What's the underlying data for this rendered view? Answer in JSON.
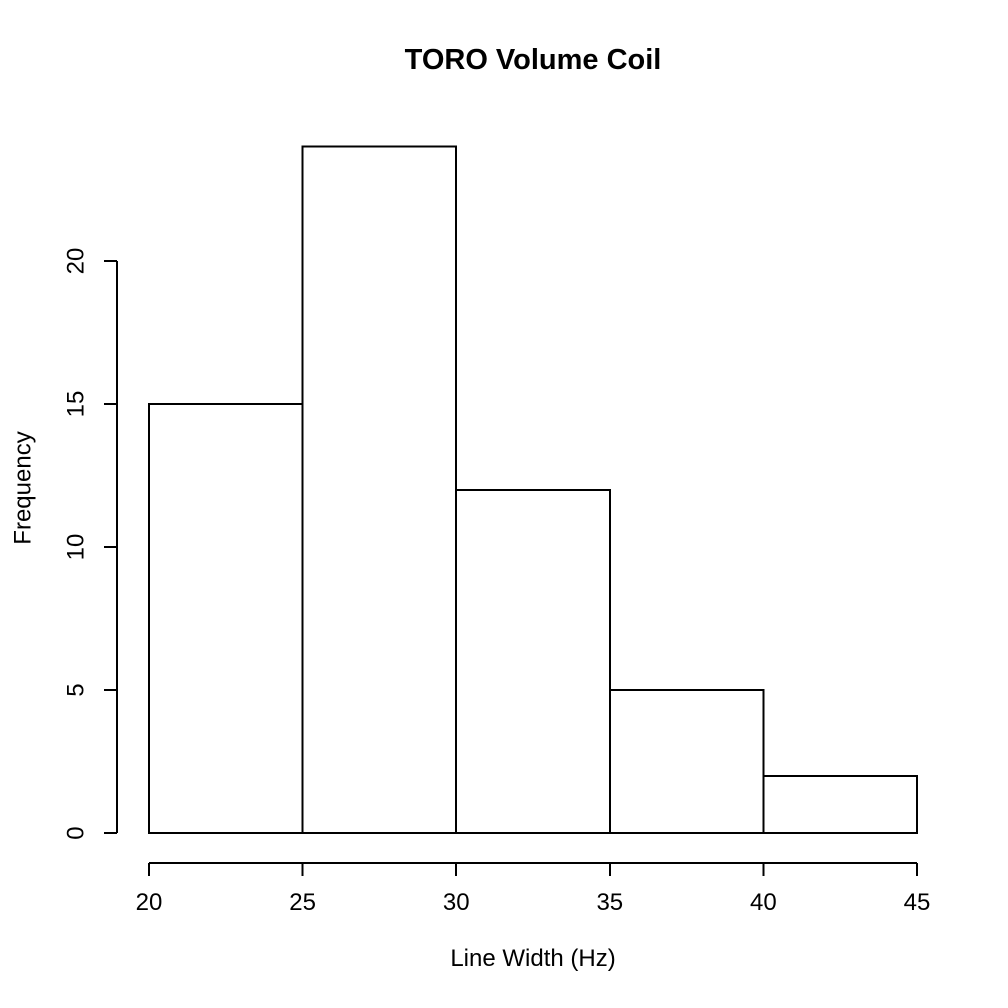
{
  "figure": {
    "title": "TORO Volume Coil",
    "xlabel": "Line Width (Hz)",
    "ylabel": "Frequency"
  },
  "chart_data": {
    "type": "bar",
    "subtype": "histogram",
    "title": "TORO Volume Coil",
    "xlabel": "Line Width (Hz)",
    "ylabel": "Frequency",
    "bin_edges": [
      20,
      25,
      30,
      35,
      40,
      45
    ],
    "bin_width": 5,
    "categories": [
      "20-25",
      "25-30",
      "30-35",
      "35-40",
      "40-45"
    ],
    "values": [
      15,
      24,
      12,
      5,
      2
    ],
    "x_ticks": [
      20,
      25,
      30,
      35,
      40,
      45
    ],
    "y_ticks": [
      0,
      5,
      10,
      15,
      20
    ],
    "xlim": [
      20,
      45
    ],
    "ylim": [
      0,
      24
    ],
    "grid": false,
    "legend": "none",
    "colors": {
      "background": "#ffffff",
      "bar_fill": "#ffffff",
      "bar_border": "#000000",
      "axis": "#000000",
      "text": "#000000"
    }
  }
}
